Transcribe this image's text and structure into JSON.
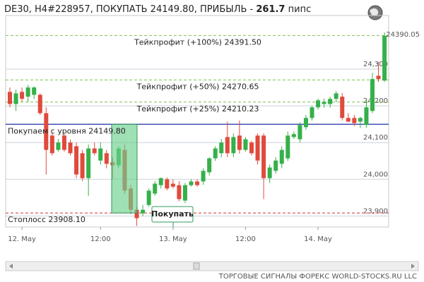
{
  "chart_data": {
    "type": "candlestick",
    "title": {
      "text": "DE30, H4#228957, ПОКУПАТЬ 24149.80, ПРИБЫЛЬ -",
      "profit": 261.7,
      "unit": "пипс"
    },
    "categories": [
      null,
      null,
      "12. May",
      null,
      null,
      null,
      null,
      null,
      null,
      null,
      null,
      null,
      null,
      null,
      null,
      "12:00",
      null,
      null,
      null,
      null,
      null,
      null,
      null,
      null,
      null,
      null,
      null,
      "13. May",
      null,
      null,
      null,
      null,
      null,
      null,
      null,
      null,
      null,
      null,
      null,
      "12:00",
      null,
      null,
      null,
      null,
      null,
      null,
      null,
      null,
      null,
      null,
      null,
      "14. May",
      null,
      null,
      null,
      null,
      null,
      null,
      null,
      null,
      null,
      null,
      null
    ],
    "open": [
      24238,
      24205,
      24238,
      24225,
      24230,
      24230,
      24180,
      24119,
      24080,
      24119,
      24100,
      24090,
      24071,
      24003,
      24084,
      24051,
      24071,
      24046,
      24038,
      24080,
      23975,
      23917,
      23907,
      23930,
      23961,
      23984,
      24000,
      23988,
      23984,
      23942,
      23984,
      23994,
      23994,
      24019,
      24057,
      24071,
      24115,
      24071,
      24119,
      24080,
      24100,
      24119,
      24119,
      24003,
      24023,
      24042,
      24057,
      24115,
      24109,
      24142,
      24167,
      24196,
      24205,
      24205,
      24219,
      24225,
      24167,
      24167,
      24157,
      24148,
      24186,
      24282,
      24269
    ],
    "high": [
      24250,
      24244,
      24250,
      24257,
      24253,
      24234,
      24196,
      24125,
      24110,
      24123,
      24108,
      24100,
      24080,
      24095,
      24100,
      24100,
      24080,
      24060,
      24090,
      24095,
      23985,
      23925,
      23930,
      23975,
      23995,
      24005,
      24005,
      24000,
      23995,
      23990,
      24000,
      24000,
      24030,
      24060,
      24090,
      24110,
      24157,
      24125,
      24160,
      24115,
      24105,
      24125,
      24125,
      24040,
      24060,
      24090,
      24130,
      24130,
      24155,
      24175,
      24200,
      24220,
      24220,
      24225,
      24240,
      24235,
      24180,
      24175,
      24170,
      24215,
      24290,
      24320,
      24400
    ],
    "low": [
      24196,
      24186,
      24211,
      24211,
      24219,
      24175,
      24013,
      24065,
      24075,
      24075,
      24065,
      24003,
      23995,
      23955,
      24065,
      24040,
      24030,
      24000,
      24030,
      23960,
      23905,
      23873,
      23900,
      23925,
      23955,
      23975,
      23970,
      23975,
      23940,
      23935,
      23980,
      23980,
      23985,
      24010,
      24050,
      24060,
      24060,
      24060,
      24070,
      24075,
      24065,
      24040,
      23946,
      23990,
      24015,
      24030,
      24050,
      24110,
      24100,
      24135,
      24160,
      24190,
      24195,
      24195,
      24210,
      24160,
      24155,
      24145,
      24140,
      24140,
      24180,
      24265,
      24265
    ],
    "close": [
      24205,
      24234,
      24219,
      24250,
      24250,
      24180,
      24080,
      24071,
      24100,
      24080,
      24071,
      24013,
      24003,
      24084,
      24071,
      24084,
      24042,
      24038,
      24084,
      23969,
      23917,
      23894,
      23917,
      23969,
      23988,
      24003,
      23975,
      23980,
      23946,
      23984,
      23994,
      23984,
      24023,
      24057,
      24084,
      24100,
      24071,
      24115,
      24080,
      24109,
      24071,
      24051,
      24003,
      24032,
      24051,
      24080,
      24119,
      24123,
      24148,
      24167,
      24196,
      24215,
      24211,
      24219,
      24234,
      24167,
      24157,
      24153,
      24167,
      24196,
      24273,
      24273,
      24391
    ],
    "up_color": "#35b04a",
    "down_color": "#e04a3c",
    "ylim": [
      23870,
      24446
    ],
    "yticks": [
      {
        "value": 23900,
        "label": "23,900"
      },
      {
        "value": 24000,
        "label": "24,000"
      },
      {
        "value": 24100,
        "label": "24,100"
      },
      {
        "value": 24200,
        "label": "24,200"
      },
      {
        "value": 24300,
        "label": "24,300"
      }
    ],
    "grid": true,
    "last_price": 24390.05,
    "annotations": [
      {
        "text": "Тейкпрофит (+100%) 24391.50",
        "value": 24391.5,
        "color": "#7cc24e",
        "dashed": true
      },
      {
        "text": "Тейкпрофит (+50%) 24270.65",
        "value": 24270.65,
        "color": "#7cc24e",
        "dashed": true
      },
      {
        "text": "Тейкпрофит (+25%) 24210.23",
        "value": 24210.23,
        "color": "#7cc24e",
        "dashed": true
      },
      {
        "text": "Покупаем с уровня 24149.80",
        "value": 24149.8,
        "color": "#1f2fa8",
        "dashed": false
      },
      {
        "text": "Стоплосс 23908.10",
        "value": 23908.1,
        "color": "#d03030",
        "dashed": true
      }
    ],
    "buy_label": "Покупать"
  },
  "footer": "ТОРГОВЫЕ СИГНАЛЫ ФОРЕКС WORLD-STOCKS.RU LLC"
}
